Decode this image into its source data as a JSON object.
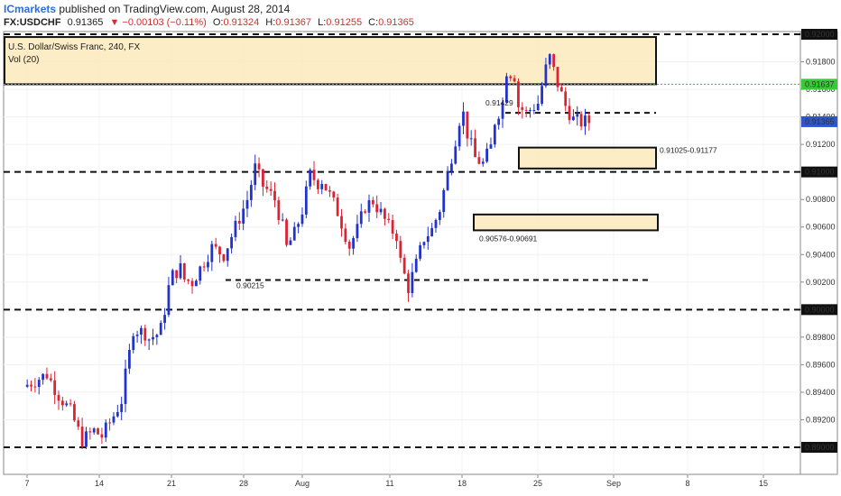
{
  "header": {
    "brand": "ICmarkets",
    "published": " published on TradingView.com, August 28, 2014",
    "symbol": "FX:USDCHF",
    "last": "0.91365",
    "change": "▼ −0.00103 (−0.11%)",
    "open_label": "O:",
    "open": "0.91324",
    "high_label": "H:",
    "high": "0.91367",
    "low_label": "L:",
    "low": "0.91255",
    "close_label": "C:",
    "close": "0.91365"
  },
  "chart_data": {
    "type": "candlestick",
    "title": "U.S. Dollar/Swiss Franc, 240, FX",
    "indicator": "Vol (20)",
    "xlabel": "",
    "ylabel": "",
    "ylim": [
      0.889,
      0.92
    ],
    "y_ticks": [
      "0.89000",
      "0.89200",
      "0.89400",
      "0.89600",
      "0.89800",
      "0.90000",
      "0.90200",
      "0.90400",
      "0.90600",
      "0.90800",
      "0.91000",
      "0.91200",
      "0.91400",
      "0.91600",
      "0.91800",
      "0.92000"
    ],
    "x_ticks": [
      "7",
      "14",
      "21",
      "28",
      "Aug",
      "11",
      "18",
      "25",
      "Sep",
      "8",
      "15"
    ],
    "current_price": "0.91365",
    "green_level_label": "0.91637",
    "green_level": 0.91637,
    "horizontal_levels": [
      {
        "value": 0.92,
        "label": "0.92000"
      },
      {
        "value": 0.91,
        "label": "0.91000"
      },
      {
        "value": 0.9,
        "label": "0.90000"
      },
      {
        "value": 0.89,
        "label": "0.89000"
      }
    ],
    "short_levels": [
      {
        "value": 0.91429,
        "label": "0.91429"
      },
      {
        "value": 0.90215,
        "label": "0.90215"
      }
    ],
    "zones": [
      {
        "name": "top-supply",
        "low": 0.91637,
        "high": 0.9198,
        "label": ""
      },
      {
        "name": "zone-0.91025",
        "low": 0.91025,
        "high": 0.91177,
        "label": "0.91025-0.91177"
      },
      {
        "name": "zone-0.90576",
        "low": 0.90576,
        "high": 0.90691,
        "label": "0.90576-0.90691"
      }
    ],
    "path": [
      [
        0,
        0.8944
      ],
      [
        6,
        0.8953
      ],
      [
        9,
        0.8938
      ],
      [
        12,
        0.8926
      ],
      [
        15,
        0.8905
      ],
      [
        18,
        0.8912
      ],
      [
        20,
        0.8908
      ],
      [
        23,
        0.8923
      ],
      [
        25,
        0.8934
      ],
      [
        26,
        0.8952
      ],
      [
        27,
        0.8968
      ],
      [
        28,
        0.8986
      ],
      [
        31,
        0.8983
      ],
      [
        32,
        0.8979
      ],
      [
        34,
        0.8982
      ],
      [
        35,
        0.8986
      ],
      [
        36,
        0.9
      ],
      [
        37,
        0.9016
      ],
      [
        38,
        0.9025
      ],
      [
        40,
        0.903
      ],
      [
        41,
        0.9022
      ],
      [
        43,
        0.902
      ],
      [
        45,
        0.903
      ],
      [
        48,
        0.9045
      ],
      [
        51,
        0.904
      ],
      [
        54,
        0.906
      ],
      [
        57,
        0.908
      ],
      [
        59,
        0.9103
      ],
      [
        61,
        0.909
      ],
      [
        62,
        0.9087
      ],
      [
        64,
        0.908
      ],
      [
        66,
        0.906
      ],
      [
        67,
        0.9045
      ],
      [
        69,
        0.9055
      ],
      [
        71,
        0.9072
      ],
      [
        73,
        0.9098
      ],
      [
        75,
        0.9092
      ],
      [
        76,
        0.9094
      ],
      [
        78,
        0.9083
      ],
      [
        80,
        0.9071
      ],
      [
        81,
        0.9063
      ],
      [
        83,
        0.9046
      ],
      [
        85,
        0.9058
      ],
      [
        87,
        0.9075
      ],
      [
        89,
        0.9079
      ],
      [
        91,
        0.907
      ],
      [
        93,
        0.906
      ],
      [
        95,
        0.9054
      ],
      [
        96,
        0.9035
      ],
      [
        97,
        0.9025
      ],
      [
        98,
        0.9016
      ],
      [
        100,
        0.9033
      ],
      [
        102,
        0.9052
      ],
      [
        104,
        0.9058
      ],
      [
        106,
        0.9073
      ],
      [
        108,
        0.9099
      ],
      [
        110,
        0.9124
      ],
      [
        111,
        0.9138
      ],
      [
        112,
        0.9142
      ],
      [
        113,
        0.9128
      ],
      [
        115,
        0.911
      ],
      [
        117,
        0.9106
      ],
      [
        119,
        0.9118
      ],
      [
        120,
        0.9137
      ],
      [
        122,
        0.915
      ],
      [
        123,
        0.9174
      ],
      [
        125,
        0.917
      ],
      [
        126,
        0.9148
      ],
      [
        128,
        0.9143
      ],
      [
        131,
        0.915
      ],
      [
        133,
        0.9175
      ],
      [
        134,
        0.9183
      ],
      [
        136,
        0.9164
      ],
      [
        138,
        0.9148
      ],
      [
        140,
        0.9138
      ],
      [
        142,
        0.9136
      ],
      [
        143,
        0.91365
      ]
    ]
  }
}
